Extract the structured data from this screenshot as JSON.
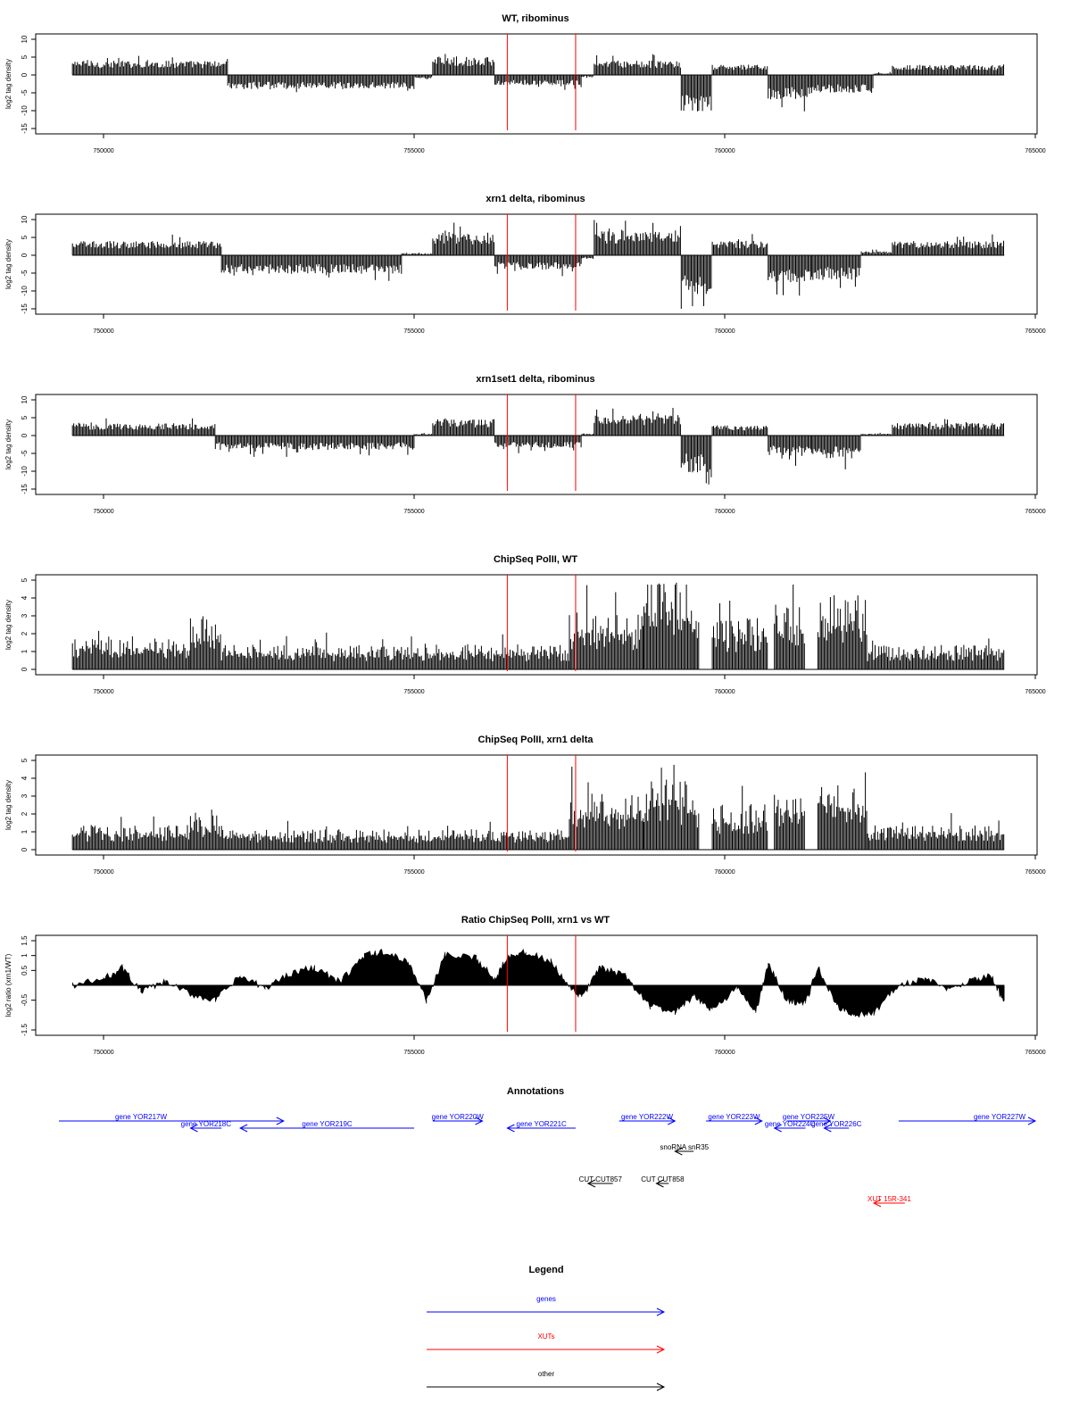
{
  "chart_data": [
    {
      "type": "bar",
      "title": "WT, ribominus",
      "xlabel": "",
      "ylabel": "log2 tag density",
      "xlim": [
        749000,
        765000
      ],
      "ylim": [
        -15,
        10
      ],
      "yticks": [
        10,
        5,
        0,
        -5,
        -10,
        -15
      ],
      "xticks": [
        750000,
        755000,
        760000,
        765000
      ],
      "markers": [
        756500,
        757600
      ],
      "segments": [
        {
          "x": [
            749500,
            752000
          ],
          "y": 3.5
        },
        {
          "x": [
            752000,
            755000
          ],
          "y": -3.5
        },
        {
          "x": [
            755000,
            755300
          ],
          "y": -1
        },
        {
          "x": [
            755300,
            756300
          ],
          "y": 4.5
        },
        {
          "x": [
            756300,
            757700
          ],
          "y": -2.5
        },
        {
          "x": [
            757700,
            757900
          ],
          "y": -0.5
        },
        {
          "x": [
            757900,
            759300
          ],
          "y": 3.5
        },
        {
          "x": [
            759300,
            759800
          ],
          "y": -9
        },
        {
          "x": [
            759800,
            760700
          ],
          "y": 2.5
        },
        {
          "x": [
            760700,
            761400
          ],
          "y": -6
        },
        {
          "x": [
            761400,
            762400
          ],
          "y": -4.5
        },
        {
          "x": [
            762400,
            762700
          ],
          "y": 0.5
        },
        {
          "x": [
            762700,
            764500
          ],
          "y": 2.5
        }
      ]
    },
    {
      "type": "bar",
      "title": "xrn1 delta, ribominus",
      "xlabel": "",
      "ylabel": "log2 tag density",
      "xlim": [
        749000,
        765000
      ],
      "ylim": [
        -15,
        10
      ],
      "yticks": [
        10,
        5,
        0,
        -5,
        -10,
        -15
      ],
      "xticks": [
        750000,
        755000,
        760000,
        765000
      ],
      "markers": [
        756500,
        757600
      ],
      "segments": [
        {
          "x": [
            749500,
            751900
          ],
          "y": 3.5
        },
        {
          "x": [
            751900,
            754800
          ],
          "y": -4.5
        },
        {
          "x": [
            754800,
            755300
          ],
          "y": 0.5
        },
        {
          "x": [
            755300,
            756300
          ],
          "y": 5.5
        },
        {
          "x": [
            756300,
            757700
          ],
          "y": -3.5
        },
        {
          "x": [
            757700,
            757900
          ],
          "y": -1
        },
        {
          "x": [
            757900,
            759300
          ],
          "y": 6
        },
        {
          "x": [
            759300,
            759800
          ],
          "y": -9.5
        },
        {
          "x": [
            759800,
            760700
          ],
          "y": 3.5
        },
        {
          "x": [
            760700,
            761400
          ],
          "y": -7
        },
        {
          "x": [
            761400,
            762200
          ],
          "y": -6
        },
        {
          "x": [
            762200,
            762700
          ],
          "y": 1
        },
        {
          "x": [
            762700,
            764500
          ],
          "y": 3.5
        }
      ]
    },
    {
      "type": "bar",
      "title": "xrn1set1 delta, ribominus",
      "xlabel": "",
      "ylabel": "log2 tag density",
      "xlim": [
        749000,
        765000
      ],
      "ylim": [
        -15,
        10
      ],
      "yticks": [
        10,
        5,
        0,
        -5,
        -10,
        -15
      ],
      "xticks": [
        750000,
        755000,
        760000,
        765000
      ],
      "markers": [
        756500,
        757600
      ],
      "segments": [
        {
          "x": [
            749500,
            751800
          ],
          "y": 3
        },
        {
          "x": [
            751800,
            755000
          ],
          "y": -3.5
        },
        {
          "x": [
            755000,
            755300
          ],
          "y": 0.5
        },
        {
          "x": [
            755300,
            756300
          ],
          "y": 4
        },
        {
          "x": [
            756300,
            757700
          ],
          "y": -3
        },
        {
          "x": [
            757700,
            757900
          ],
          "y": 0.5
        },
        {
          "x": [
            757900,
            759300
          ],
          "y": 5
        },
        {
          "x": [
            759300,
            759800
          ],
          "y": -9
        },
        {
          "x": [
            759800,
            760700
          ],
          "y": 2.5
        },
        {
          "x": [
            760700,
            761400
          ],
          "y": -5
        },
        {
          "x": [
            761400,
            762200
          ],
          "y": -5.5
        },
        {
          "x": [
            762200,
            762700
          ],
          "y": 0.5
        },
        {
          "x": [
            762700,
            764500
          ],
          "y": 3
        }
      ]
    },
    {
      "type": "bar",
      "title": "ChipSeq PolII, WT",
      "xlabel": "",
      "ylabel": "log2 tag density",
      "xlim": [
        749000,
        765000
      ],
      "ylim": [
        0,
        5
      ],
      "yticks": [
        5,
        4,
        3,
        2,
        1,
        0
      ],
      "xticks": [
        750000,
        755000,
        760000,
        765000
      ],
      "markers": [
        756500,
        757600
      ],
      "segments": [
        {
          "x": [
            749500,
            751400
          ],
          "y": 1.5
        },
        {
          "x": [
            751400,
            751900
          ],
          "y": 2.5
        },
        {
          "x": [
            751900,
            757500
          ],
          "y": 1.2
        },
        {
          "x": [
            757500,
            758700
          ],
          "y": 2.8
        },
        {
          "x": [
            758700,
            759500
          ],
          "y": 4.5
        },
        {
          "x": [
            759500,
            759600
          ],
          "y": 3.5
        },
        {
          "x": [
            759600,
            759800
          ],
          "y": 0
        },
        {
          "x": [
            759800,
            760700
          ],
          "y": 2.5
        },
        {
          "x": [
            760700,
            760800
          ],
          "y": 0
        },
        {
          "x": [
            760800,
            761300
          ],
          "y": 3.3
        },
        {
          "x": [
            761300,
            761500
          ],
          "y": 0
        },
        {
          "x": [
            761500,
            762300
          ],
          "y": 3.8
        },
        {
          "x": [
            762300,
            764500
          ],
          "y": 1.2
        }
      ]
    },
    {
      "type": "bar",
      "title": "ChipSeq PolII, xrn1 delta",
      "xlabel": "",
      "ylabel": "log2 tag density",
      "xlim": [
        749000,
        765000
      ],
      "ylim": [
        0,
        5
      ],
      "yticks": [
        5,
        4,
        3,
        2,
        1,
        0
      ],
      "xticks": [
        750000,
        755000,
        760000,
        765000
      ],
      "markers": [
        756500,
        757600
      ],
      "segments": [
        {
          "x": [
            749500,
            751400
          ],
          "y": 1.2
        },
        {
          "x": [
            751400,
            751900
          ],
          "y": 1.8
        },
        {
          "x": [
            751900,
            757500
          ],
          "y": 1.0
        },
        {
          "x": [
            757500,
            758700
          ],
          "y": 2.8
        },
        {
          "x": [
            758700,
            759500
          ],
          "y": 3.5
        },
        {
          "x": [
            759500,
            759600
          ],
          "y": 2.5
        },
        {
          "x": [
            759600,
            759800
          ],
          "y": 0
        },
        {
          "x": [
            759800,
            760700
          ],
          "y": 2.2
        },
        {
          "x": [
            760700,
            760800
          ],
          "y": 0
        },
        {
          "x": [
            760800,
            761300
          ],
          "y": 2.8
        },
        {
          "x": [
            761300,
            761500
          ],
          "y": 0
        },
        {
          "x": [
            761500,
            762300
          ],
          "y": 3.2
        },
        {
          "x": [
            762300,
            764500
          ],
          "y": 1.2
        }
      ]
    },
    {
      "type": "area",
      "title": "Ratio ChipSeq PolII, xrn1 vs WT",
      "xlabel": "",
      "ylabel": "log2 ratio (xrn1/WT)",
      "xlim": [
        749000,
        765000
      ],
      "ylim": [
        -1.5,
        1.5
      ],
      "yticks": [
        1.5,
        1.0,
        0.5,
        -0.5,
        -1.5
      ],
      "xticks": [
        750000,
        755000,
        760000,
        765000
      ],
      "markers": [
        756500,
        757600
      ],
      "x": [
        749500,
        750000,
        750300,
        750600,
        751000,
        751400,
        751800,
        752200,
        752600,
        753000,
        753400,
        753800,
        754200,
        754500,
        754900,
        755200,
        755500,
        756000,
        756300,
        756500,
        756800,
        757200,
        757500,
        757700,
        758000,
        758400,
        758800,
        759200,
        759500,
        759800,
        760200,
        760500,
        760700,
        761000,
        761300,
        761500,
        761800,
        762100,
        762400,
        762800,
        763200,
        763600,
        764000,
        764300,
        764500
      ],
      "y": [
        0.0,
        0.2,
        0.6,
        -0.2,
        0.1,
        -0.3,
        -0.5,
        0.3,
        -0.1,
        0.4,
        0.6,
        0.1,
        1.0,
        1.1,
        0.8,
        -0.5,
        1.0,
        0.9,
        0.2,
        1.0,
        1.1,
        0.8,
        -0.1,
        -0.4,
        0.6,
        0.3,
        -0.7,
        -0.9,
        -0.4,
        -0.8,
        -0.1,
        -0.9,
        0.7,
        -0.5,
        -0.6,
        0.6,
        -0.7,
        -1.0,
        -0.9,
        0.0,
        0.2,
        -0.1,
        0.2,
        0.3,
        -0.6
      ]
    }
  ],
  "annotations": {
    "title": "Annotations",
    "items": [
      {
        "label": "gene YOR217W",
        "start": 749000,
        "end": 752900,
        "row": 0,
        "dir": "right",
        "color": "#0000ff"
      },
      {
        "label": "gene YOR218C",
        "start": 751400,
        "end": 751900,
        "row": 1,
        "dir": "left",
        "color": "#0000ff"
      },
      {
        "label": "gene YOR219C",
        "start": 752200,
        "end": 755000,
        "row": 1,
        "dir": "left",
        "color": "#0000ff"
      },
      {
        "label": "gene YOR220W",
        "start": 755300,
        "end": 756100,
        "row": 0,
        "dir": "right",
        "color": "#0000ff"
      },
      {
        "label": "gene YOR221C",
        "start": 756500,
        "end": 757600,
        "row": 1,
        "dir": "left",
        "color": "#0000ff"
      },
      {
        "label": "gene YOR222W",
        "start": 758300,
        "end": 759200,
        "row": 0,
        "dir": "right",
        "color": "#0000ff"
      },
      {
        "label": "gene YOR223W",
        "start": 759700,
        "end": 760600,
        "row": 0,
        "dir": "right",
        "color": "#0000ff"
      },
      {
        "label": "gene YOR224C",
        "start": 760800,
        "end": 761300,
        "row": 1,
        "dir": "left",
        "color": "#0000ff"
      },
      {
        "label": "gene YOR225W",
        "start": 761000,
        "end": 761700,
        "row": 0,
        "dir": "right",
        "color": "#0000ff"
      },
      {
        "label": "gene YOR226C",
        "start": 761600,
        "end": 762000,
        "row": 1,
        "dir": "left",
        "color": "#0000ff"
      },
      {
        "label": "gene YOR227W",
        "start": 762800,
        "end": 765000,
        "row": 0,
        "dir": "right",
        "color": "#0000ff"
      },
      {
        "label": "snoRNA snR35",
        "start": 759200,
        "end": 759500,
        "row": 2,
        "dir": "left",
        "color": "#000000"
      },
      {
        "label": "CUT CUT857",
        "start": 757800,
        "end": 758200,
        "row": 3,
        "dir": "left",
        "color": "#000000"
      },
      {
        "label": "CUT CUT858",
        "start": 758900,
        "end": 759100,
        "row": 3,
        "dir": "left",
        "color": "#000000"
      },
      {
        "label": "XUT 15R-341",
        "start": 762400,
        "end": 762900,
        "row": 4,
        "dir": "left",
        "color": "#ff0000"
      }
    ]
  },
  "legend": {
    "title": "Legend",
    "items": [
      {
        "label": "genes",
        "color": "#0000ff"
      },
      {
        "label": "XUTs",
        "color": "#ff0000"
      },
      {
        "label": "other",
        "color": "#000000"
      }
    ]
  },
  "colors": {
    "marker": "#ff0000",
    "data": "#000000",
    "axis": "#000000"
  }
}
